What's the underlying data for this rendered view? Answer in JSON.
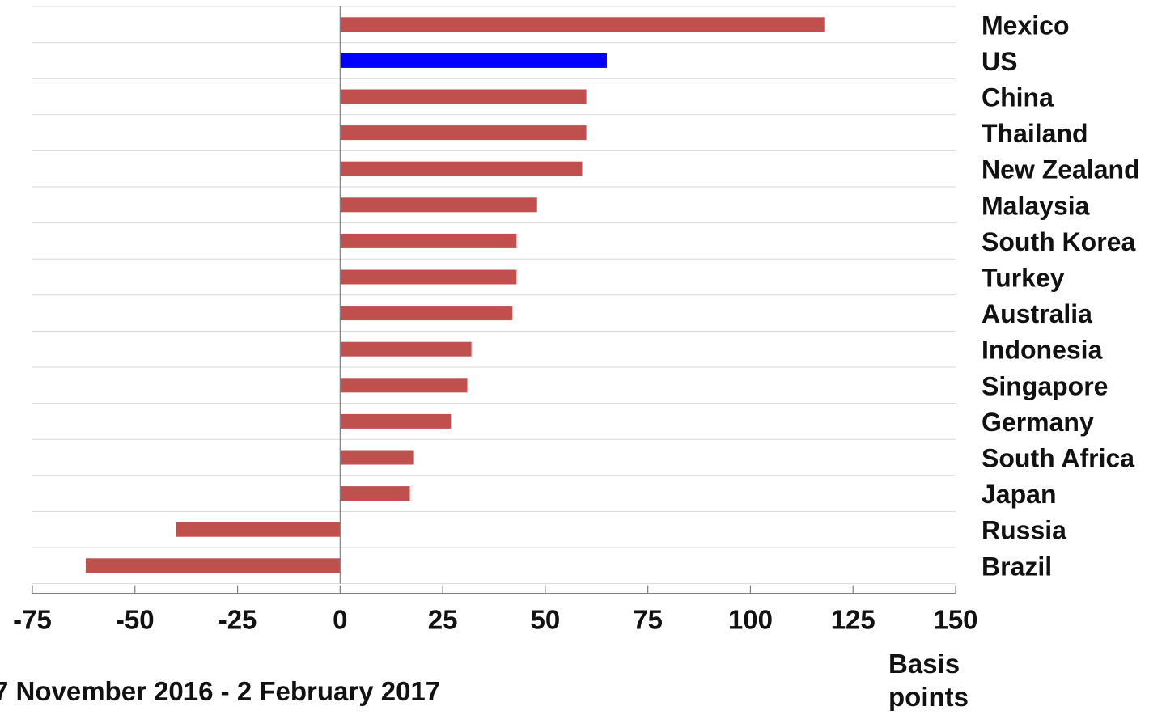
{
  "chart_data": {
    "type": "bar",
    "orientation": "horizontal",
    "categories": [
      "Mexico",
      "US",
      "China",
      "Thailand",
      "New Zealand",
      "Malaysia",
      "South Korea",
      "Turkey",
      "Australia",
      "Indonesia",
      "Singapore",
      "Germany",
      "South Africa",
      "Japan",
      "Russia",
      "Brazil"
    ],
    "values": [
      118,
      65,
      60,
      60,
      59,
      48,
      43,
      43,
      42,
      32,
      31,
      27,
      18,
      17,
      -40,
      -62
    ],
    "highlight": {
      "category": "US",
      "color": "#0000ff"
    },
    "bar_color": "#c0504d",
    "xlim": [
      -75,
      150
    ],
    "xticks": [
      "-75",
      "-50",
      "-25",
      "0",
      "25",
      "50",
      "75",
      "100",
      "125",
      "150"
    ],
    "xlabel_lines": [
      "Basis",
      "points"
    ],
    "note": "7 November 2016 - 2 February 2017",
    "grid": true,
    "category_labels_position": "right"
  }
}
